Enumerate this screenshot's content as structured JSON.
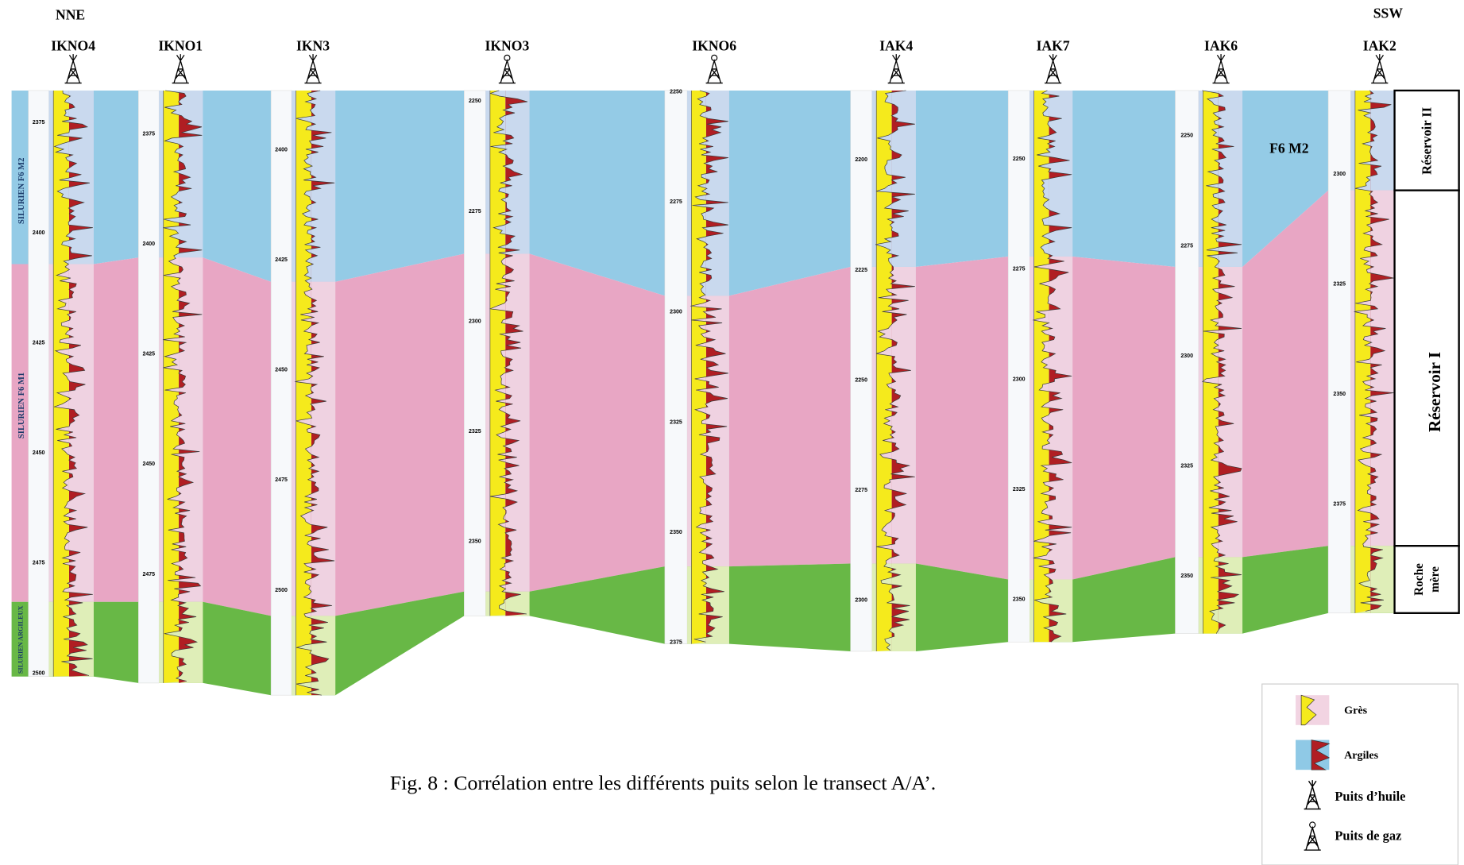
{
  "header": {
    "left_direction": "NNE",
    "right_direction": "SSW"
  },
  "wells": [
    {
      "name": "IKNO4",
      "depths": [
        2375,
        2400,
        2425,
        2450,
        2475,
        2500
      ]
    },
    {
      "name": "IKNO1",
      "depths": [
        2375,
        2400,
        2425,
        2450,
        2475
      ]
    },
    {
      "name": "IKN3",
      "depths": [
        2400,
        2425,
        2450,
        2475,
        2500
      ]
    },
    {
      "name": "IKNO3",
      "depths": [
        2250,
        2275,
        2300,
        2325,
        2350
      ]
    },
    {
      "name": "IKNO6",
      "depths": [
        2250,
        2275,
        2300,
        2325,
        2350,
        2375
      ]
    },
    {
      "name": "IAK4",
      "depths": [
        2200,
        2225,
        2250,
        2275,
        2300
      ]
    },
    {
      "name": "IAK7",
      "depths": [
        2250,
        2275,
        2300,
        2325,
        2350
      ]
    },
    {
      "name": "IAK6",
      "depths": [
        2250,
        2275,
        2300,
        2325,
        2350
      ]
    },
    {
      "name": "IAK2",
      "depths": [
        2300,
        2325,
        2350,
        2375
      ]
    }
  ],
  "formations": {
    "f6_m2": "SILURIEN F6 M2",
    "f6_m1": "SILURIEN F6 M1",
    "argileux": "SILURIEN ARGILEUX"
  },
  "zone_label": "F6 M2",
  "reservoirs": {
    "reservoir_2": "Réservoir II",
    "reservoir_1": "Réservoir I",
    "roche_mere": [
      "Roche",
      "mère"
    ]
  },
  "legend": {
    "gres": "Grès",
    "argiles": "Argiles",
    "oil_well": "Puits d’huile",
    "gas_well": "Puits de gaz"
  },
  "caption": "Fig. 8 : Corrélation entre les différents puits selon le transect A/A’."
}
